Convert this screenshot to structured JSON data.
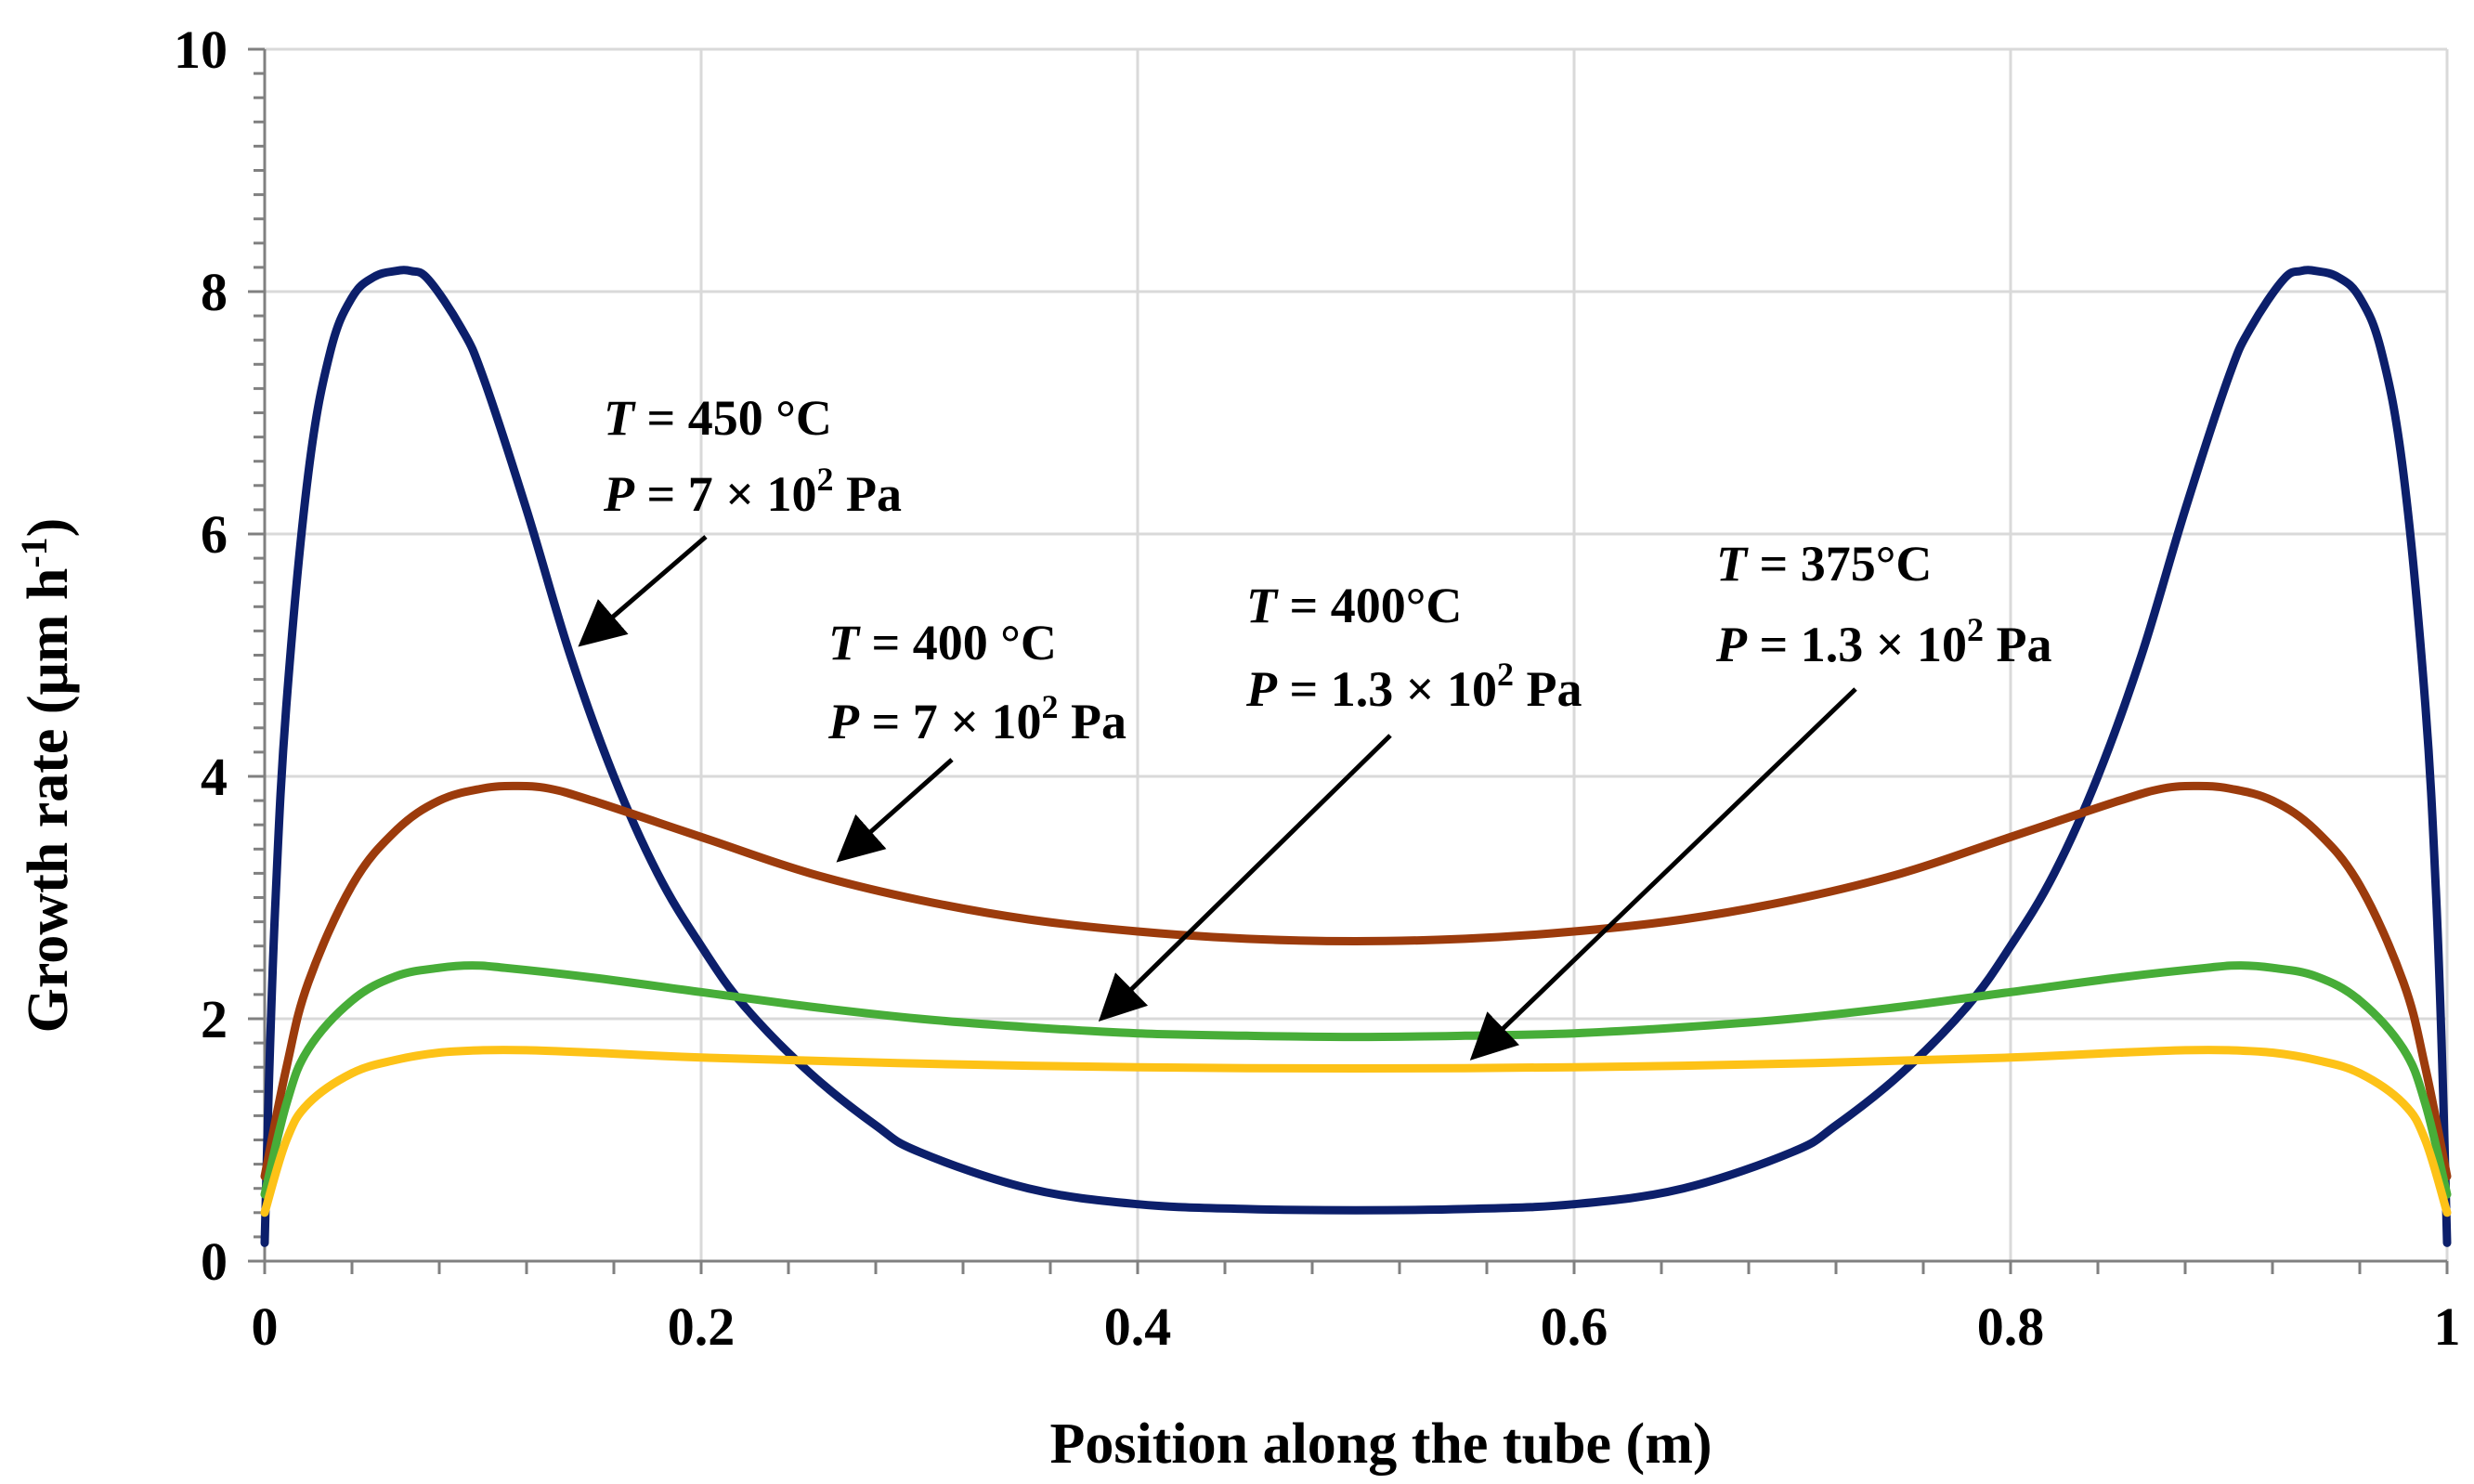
{
  "chart_data": {
    "type": "line",
    "title": "",
    "xlabel": "Position along the tube (m)",
    "ylabel_main": "Growth rate (μm h",
    "ylabel_sup": "-1",
    "ylabel_close": ")",
    "xlim": [
      0,
      1
    ],
    "ylim": [
      0,
      10
    ],
    "xticks": [
      0,
      0.2,
      0.4,
      0.6,
      0.8,
      1
    ],
    "xtick_labels": [
      "0",
      "0.2",
      "0.4",
      "0.6",
      "0.8",
      "1"
    ],
    "yticks": [
      0,
      2,
      4,
      6,
      8,
      10
    ],
    "ytick_labels": [
      "0",
      "2",
      "4",
      "6",
      "8",
      "10"
    ],
    "grid": true,
    "series": [
      {
        "name": "T = 450 °C, P = 7 × 10² Pa",
        "color": "#0c1f6b",
        "x": [
          0,
          0.002,
          0.005,
          0.01,
          0.02,
          0.03,
          0.04,
          0.05,
          0.06,
          0.067,
          0.075,
          0.09,
          0.1,
          0.12,
          0.14,
          0.16,
          0.18,
          0.2,
          0.22,
          0.25,
          0.28,
          0.3,
          0.35,
          0.4,
          0.45,
          0.5,
          0.55,
          0.6,
          0.65,
          0.7,
          0.72,
          0.75,
          0.78,
          0.8,
          0.82,
          0.84,
          0.86,
          0.88,
          0.9,
          0.91,
          0.925,
          0.933,
          0.94,
          0.95,
          0.96,
          0.97,
          0.98,
          0.99,
          0.995,
          0.998,
          1
        ],
        "y": [
          0.15,
          1.5,
          3.0,
          4.6,
          6.5,
          7.5,
          7.95,
          8.12,
          8.17,
          8.17,
          8.1,
          7.7,
          7.3,
          6.2,
          5.0,
          4.0,
          3.2,
          2.6,
          2.1,
          1.55,
          1.12,
          0.9,
          0.6,
          0.47,
          0.43,
          0.42,
          0.43,
          0.47,
          0.6,
          0.9,
          1.12,
          1.55,
          2.1,
          2.6,
          3.2,
          4.0,
          5.0,
          6.2,
          7.3,
          7.7,
          8.1,
          8.17,
          8.17,
          8.12,
          7.95,
          7.5,
          6.5,
          4.6,
          3.0,
          1.5,
          0.15
        ]
      },
      {
        "name": "T = 400 °C, P = 7 × 10² Pa",
        "color": "#9c3b0c",
        "x": [
          0,
          0.01,
          0.02,
          0.04,
          0.06,
          0.08,
          0.1,
          0.115,
          0.13,
          0.15,
          0.2,
          0.25,
          0.3,
          0.35,
          0.4,
          0.45,
          0.5,
          0.55,
          0.6,
          0.65,
          0.7,
          0.75,
          0.8,
          0.85,
          0.87,
          0.885,
          0.9,
          0.92,
          0.94,
          0.96,
          0.98,
          0.99,
          1
        ],
        "y": [
          0.7,
          1.6,
          2.3,
          3.1,
          3.55,
          3.8,
          3.9,
          3.92,
          3.9,
          3.8,
          3.5,
          3.2,
          2.98,
          2.82,
          2.72,
          2.66,
          2.64,
          2.66,
          2.72,
          2.82,
          2.98,
          3.2,
          3.5,
          3.8,
          3.9,
          3.92,
          3.9,
          3.8,
          3.55,
          3.1,
          2.3,
          1.6,
          0.7
        ]
      },
      {
        "name": "T = 400°C, P = 1.3 × 10² Pa",
        "color": "#47ad38",
        "x": [
          0,
          0.01,
          0.02,
          0.04,
          0.06,
          0.08,
          0.095,
          0.11,
          0.15,
          0.2,
          0.25,
          0.3,
          0.35,
          0.4,
          0.45,
          0.5,
          0.55,
          0.6,
          0.65,
          0.7,
          0.75,
          0.8,
          0.85,
          0.89,
          0.905,
          0.92,
          0.94,
          0.96,
          0.98,
          0.99,
          1
        ],
        "y": [
          0.55,
          1.3,
          1.75,
          2.15,
          2.35,
          2.42,
          2.44,
          2.42,
          2.34,
          2.22,
          2.1,
          2.0,
          1.93,
          1.88,
          1.86,
          1.85,
          1.86,
          1.88,
          1.93,
          2.0,
          2.1,
          2.22,
          2.34,
          2.42,
          2.44,
          2.42,
          2.35,
          2.15,
          1.75,
          1.3,
          0.55
        ]
      },
      {
        "name": "T = 375°C, P = 1.3 × 10² Pa",
        "color": "#fdc217",
        "x": [
          0,
          0.01,
          0.02,
          0.04,
          0.06,
          0.08,
          0.1,
          0.12,
          0.15,
          0.2,
          0.3,
          0.4,
          0.5,
          0.6,
          0.7,
          0.8,
          0.85,
          0.88,
          0.9,
          0.92,
          0.94,
          0.96,
          0.98,
          0.99,
          1
        ],
        "y": [
          0.4,
          1.0,
          1.3,
          1.55,
          1.66,
          1.72,
          1.74,
          1.74,
          1.72,
          1.68,
          1.63,
          1.6,
          1.59,
          1.6,
          1.63,
          1.68,
          1.72,
          1.74,
          1.74,
          1.72,
          1.66,
          1.55,
          1.3,
          1.0,
          0.4
        ]
      }
    ],
    "annotations": [
      {
        "id": "a450",
        "T_value": "= 450 °C",
        "P_value": "= 7 × 10",
        "P_sup": "2",
        "P_unit": " Pa"
      },
      {
        "id": "a400hp",
        "T_value": "= 400 °C",
        "P_value": "= 7 × 10",
        "P_sup": "2",
        "P_unit": " Pa"
      },
      {
        "id": "a400lp",
        "T_value": "= 400°C",
        "P_value": "= 1.3 × 10",
        "P_sup": "2",
        "P_unit": " Pa"
      },
      {
        "id": "a375",
        "T_value": "= 375°C",
        "P_value": "= 1.3 × 10",
        "P_sup": "2",
        "P_unit": " Pa"
      }
    ],
    "var_T": "T",
    "var_P": "P"
  }
}
